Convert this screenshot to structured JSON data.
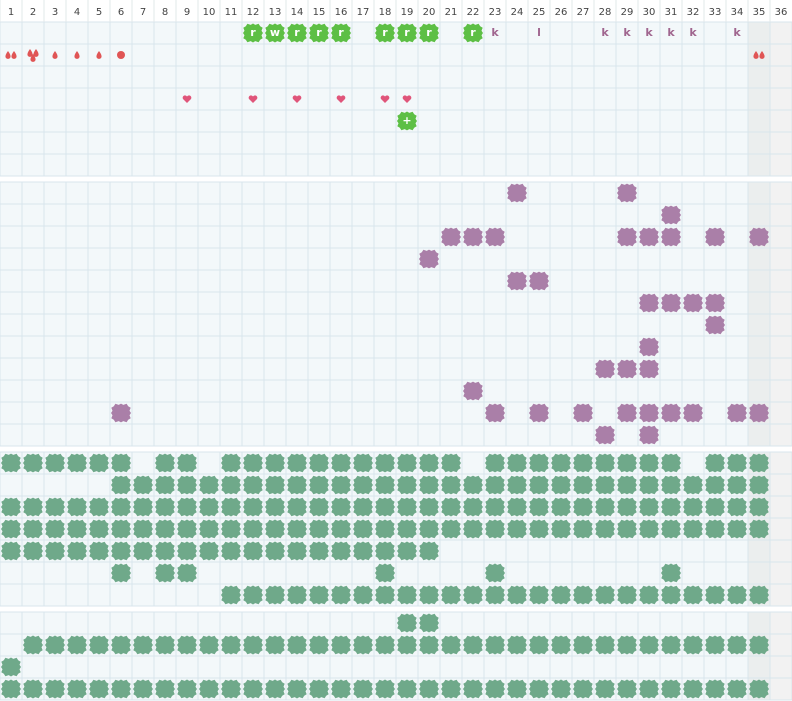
{
  "columns": [
    1,
    2,
    3,
    4,
    5,
    6,
    7,
    8,
    9,
    10,
    11,
    12,
    13,
    14,
    15,
    16,
    17,
    18,
    19,
    20,
    21,
    22,
    23,
    24,
    25,
    26,
    27,
    28,
    29,
    30,
    31,
    32,
    33,
    34,
    35,
    36
  ],
  "top_letters": [
    null,
    null,
    null,
    null,
    null,
    null,
    null,
    null,
    null,
    null,
    null,
    "r",
    "w",
    "r",
    "r",
    "r",
    null,
    "r",
    "r",
    "r",
    null,
    "r",
    "k",
    null,
    "l",
    null,
    null,
    "k",
    "k",
    "k",
    "k",
    "k",
    null,
    "k",
    null,
    null
  ],
  "plus_row": [
    null,
    null,
    null,
    null,
    null,
    null,
    null,
    null,
    null,
    null,
    null,
    null,
    null,
    null,
    null,
    null,
    null,
    null,
    "+",
    null,
    null,
    null,
    null,
    null,
    null,
    null,
    null,
    null,
    null,
    null,
    null,
    null,
    null,
    null,
    null,
    null
  ]
}
